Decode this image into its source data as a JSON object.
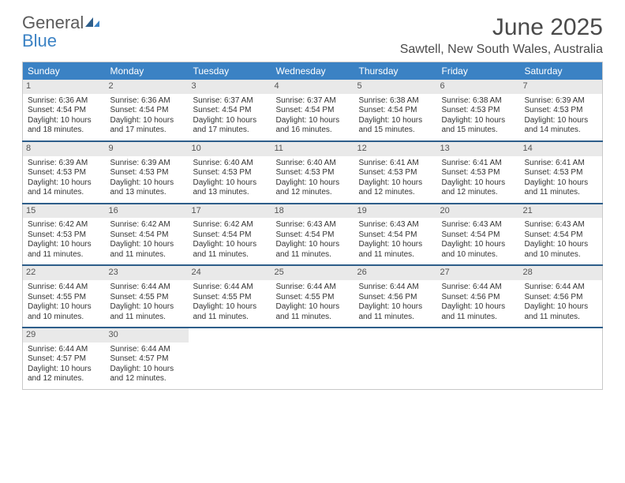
{
  "brand": {
    "general": "General",
    "blue": "Blue"
  },
  "title": "June 2025",
  "location": "Sawtell, New South Wales, Australia",
  "colors": {
    "header_bg": "#3b82c4",
    "header_text": "#ffffff",
    "daynum_bg": "#e9e9e9",
    "row_separator": "#2e5e8a",
    "body_text": "#333333",
    "title_text": "#4a4a4a",
    "table_border": "#c9c9c9"
  },
  "weekdays": [
    "Sunday",
    "Monday",
    "Tuesday",
    "Wednesday",
    "Thursday",
    "Friday",
    "Saturday"
  ],
  "weeks": [
    [
      {
        "n": "1",
        "sr": "Sunrise: 6:36 AM",
        "ss": "Sunset: 4:54 PM",
        "d1": "Daylight: 10 hours",
        "d2": "and 18 minutes."
      },
      {
        "n": "2",
        "sr": "Sunrise: 6:36 AM",
        "ss": "Sunset: 4:54 PM",
        "d1": "Daylight: 10 hours",
        "d2": "and 17 minutes."
      },
      {
        "n": "3",
        "sr": "Sunrise: 6:37 AM",
        "ss": "Sunset: 4:54 PM",
        "d1": "Daylight: 10 hours",
        "d2": "and 17 minutes."
      },
      {
        "n": "4",
        "sr": "Sunrise: 6:37 AM",
        "ss": "Sunset: 4:54 PM",
        "d1": "Daylight: 10 hours",
        "d2": "and 16 minutes."
      },
      {
        "n": "5",
        "sr": "Sunrise: 6:38 AM",
        "ss": "Sunset: 4:54 PM",
        "d1": "Daylight: 10 hours",
        "d2": "and 15 minutes."
      },
      {
        "n": "6",
        "sr": "Sunrise: 6:38 AM",
        "ss": "Sunset: 4:53 PM",
        "d1": "Daylight: 10 hours",
        "d2": "and 15 minutes."
      },
      {
        "n": "7",
        "sr": "Sunrise: 6:39 AM",
        "ss": "Sunset: 4:53 PM",
        "d1": "Daylight: 10 hours",
        "d2": "and 14 minutes."
      }
    ],
    [
      {
        "n": "8",
        "sr": "Sunrise: 6:39 AM",
        "ss": "Sunset: 4:53 PM",
        "d1": "Daylight: 10 hours",
        "d2": "and 14 minutes."
      },
      {
        "n": "9",
        "sr": "Sunrise: 6:39 AM",
        "ss": "Sunset: 4:53 PM",
        "d1": "Daylight: 10 hours",
        "d2": "and 13 minutes."
      },
      {
        "n": "10",
        "sr": "Sunrise: 6:40 AM",
        "ss": "Sunset: 4:53 PM",
        "d1": "Daylight: 10 hours",
        "d2": "and 13 minutes."
      },
      {
        "n": "11",
        "sr": "Sunrise: 6:40 AM",
        "ss": "Sunset: 4:53 PM",
        "d1": "Daylight: 10 hours",
        "d2": "and 12 minutes."
      },
      {
        "n": "12",
        "sr": "Sunrise: 6:41 AM",
        "ss": "Sunset: 4:53 PM",
        "d1": "Daylight: 10 hours",
        "d2": "and 12 minutes."
      },
      {
        "n": "13",
        "sr": "Sunrise: 6:41 AM",
        "ss": "Sunset: 4:53 PM",
        "d1": "Daylight: 10 hours",
        "d2": "and 12 minutes."
      },
      {
        "n": "14",
        "sr": "Sunrise: 6:41 AM",
        "ss": "Sunset: 4:53 PM",
        "d1": "Daylight: 10 hours",
        "d2": "and 11 minutes."
      }
    ],
    [
      {
        "n": "15",
        "sr": "Sunrise: 6:42 AM",
        "ss": "Sunset: 4:53 PM",
        "d1": "Daylight: 10 hours",
        "d2": "and 11 minutes."
      },
      {
        "n": "16",
        "sr": "Sunrise: 6:42 AM",
        "ss": "Sunset: 4:54 PM",
        "d1": "Daylight: 10 hours",
        "d2": "and 11 minutes."
      },
      {
        "n": "17",
        "sr": "Sunrise: 6:42 AM",
        "ss": "Sunset: 4:54 PM",
        "d1": "Daylight: 10 hours",
        "d2": "and 11 minutes."
      },
      {
        "n": "18",
        "sr": "Sunrise: 6:43 AM",
        "ss": "Sunset: 4:54 PM",
        "d1": "Daylight: 10 hours",
        "d2": "and 11 minutes."
      },
      {
        "n": "19",
        "sr": "Sunrise: 6:43 AM",
        "ss": "Sunset: 4:54 PM",
        "d1": "Daylight: 10 hours",
        "d2": "and 11 minutes."
      },
      {
        "n": "20",
        "sr": "Sunrise: 6:43 AM",
        "ss": "Sunset: 4:54 PM",
        "d1": "Daylight: 10 hours",
        "d2": "and 10 minutes."
      },
      {
        "n": "21",
        "sr": "Sunrise: 6:43 AM",
        "ss": "Sunset: 4:54 PM",
        "d1": "Daylight: 10 hours",
        "d2": "and 10 minutes."
      }
    ],
    [
      {
        "n": "22",
        "sr": "Sunrise: 6:44 AM",
        "ss": "Sunset: 4:55 PM",
        "d1": "Daylight: 10 hours",
        "d2": "and 10 minutes."
      },
      {
        "n": "23",
        "sr": "Sunrise: 6:44 AM",
        "ss": "Sunset: 4:55 PM",
        "d1": "Daylight: 10 hours",
        "d2": "and 11 minutes."
      },
      {
        "n": "24",
        "sr": "Sunrise: 6:44 AM",
        "ss": "Sunset: 4:55 PM",
        "d1": "Daylight: 10 hours",
        "d2": "and 11 minutes."
      },
      {
        "n": "25",
        "sr": "Sunrise: 6:44 AM",
        "ss": "Sunset: 4:55 PM",
        "d1": "Daylight: 10 hours",
        "d2": "and 11 minutes."
      },
      {
        "n": "26",
        "sr": "Sunrise: 6:44 AM",
        "ss": "Sunset: 4:56 PM",
        "d1": "Daylight: 10 hours",
        "d2": "and 11 minutes."
      },
      {
        "n": "27",
        "sr": "Sunrise: 6:44 AM",
        "ss": "Sunset: 4:56 PM",
        "d1": "Daylight: 10 hours",
        "d2": "and 11 minutes."
      },
      {
        "n": "28",
        "sr": "Sunrise: 6:44 AM",
        "ss": "Sunset: 4:56 PM",
        "d1": "Daylight: 10 hours",
        "d2": "and 11 minutes."
      }
    ],
    [
      {
        "n": "29",
        "sr": "Sunrise: 6:44 AM",
        "ss": "Sunset: 4:57 PM",
        "d1": "Daylight: 10 hours",
        "d2": "and 12 minutes."
      },
      {
        "n": "30",
        "sr": "Sunrise: 6:44 AM",
        "ss": "Sunset: 4:57 PM",
        "d1": "Daylight: 10 hours",
        "d2": "and 12 minutes."
      },
      null,
      null,
      null,
      null,
      null
    ]
  ]
}
